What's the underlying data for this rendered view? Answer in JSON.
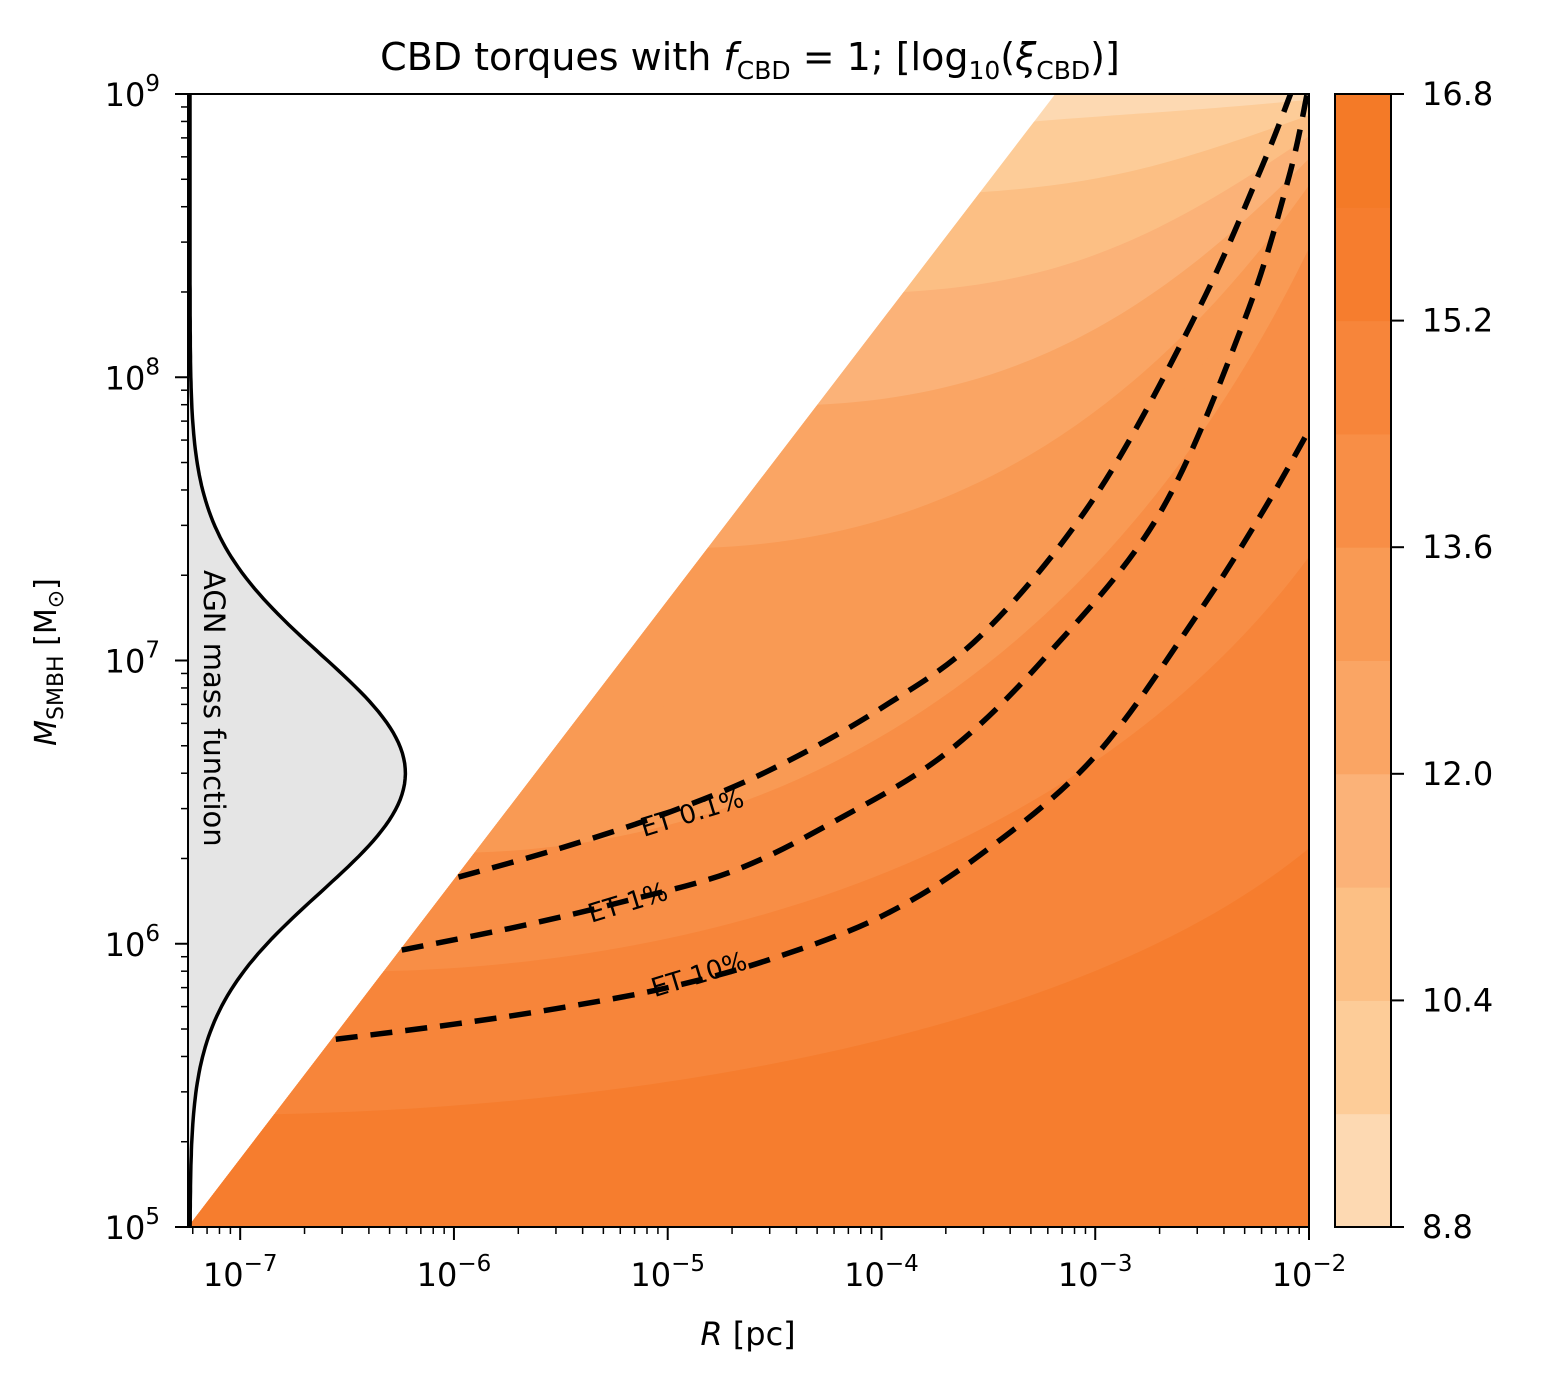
{
  "chart_data": {
    "type": "contourf",
    "title_parts": {
      "prefix": "CBD torques with ",
      "f": "f",
      "f_sub": "CBD",
      "eq": " = 1; [log",
      "log_sub": "10",
      "open": "(",
      "xi": "ξ",
      "xi_sub": "CBD",
      "close": ")]"
    },
    "xlabel": {
      "var": "R",
      "unit": " [pc]"
    },
    "ylabel": {
      "var": "M",
      "sub": "SMBH",
      "unit": " [M",
      "unit_sub": "⊙",
      "unit_close": "]"
    },
    "xscale": "log",
    "yscale": "log",
    "xlim": [
      5.7e-08,
      0.01
    ],
    "ylim": [
      100000,
      1000000000
    ],
    "x_ticks": [
      {
        "value": 1e-07,
        "base": "10",
        "exp": "−7"
      },
      {
        "value": 1e-06,
        "base": "10",
        "exp": "−6"
      },
      {
        "value": 1e-05,
        "base": "10",
        "exp": "−5"
      },
      {
        "value": 0.0001,
        "base": "10",
        "exp": "−4"
      },
      {
        "value": 0.001,
        "base": "10",
        "exp": "−3"
      },
      {
        "value": 0.01,
        "base": "10",
        "exp": "−2"
      }
    ],
    "y_ticks": [
      {
        "value": 100000,
        "base": "10",
        "exp": "5"
      },
      {
        "value": 1000000,
        "base": "10",
        "exp": "6"
      },
      {
        "value": 10000000,
        "base": "10",
        "exp": "7"
      },
      {
        "value": 100000000,
        "base": "10",
        "exp": "8"
      },
      {
        "value": 1000000000,
        "base": "10",
        "exp": "9"
      }
    ],
    "colorbar": {
      "range": [
        8.8,
        16.8
      ],
      "ticks": [
        "8.8",
        "10.4",
        "12.0",
        "13.6",
        "15.2",
        "16.8"
      ],
      "levels": 10,
      "colors": [
        "#fdd9b2",
        "#fdcc98",
        "#fcbf84",
        "#fbb278",
        "#faa564",
        "#f99a54",
        "#f88e46",
        "#f7853a",
        "#f67d2e",
        "#f47a27"
      ]
    },
    "contour_region": {
      "boundary": "power-law edge from (R=5.7e-8 pc, M=1e5) to (R=6.5e-4 pc, M=1e9)",
      "bands": [
        {
          "level": 16.0,
          "corner_M_at_edge": 250000,
          "M_at_R_max": 3500000
        },
        {
          "level": 15.2,
          "corner_M_at_edge": 800000,
          "M_at_R_max": 50000000
        },
        {
          "level": 14.4,
          "corner_M_at_edge": 2100000,
          "M_at_R_max": 900000000
        },
        {
          "level": 13.6,
          "corner_M_at_edge": 6500000,
          "M_at_R_max": 1200000000
        },
        {
          "level": 12.8,
          "corner_M_at_edge": 25000000,
          "M_at_R_max": 1000000000
        },
        {
          "level": 12.0,
          "corner_M_at_edge": 80000000,
          "M_at_R_max": 1000000000
        },
        {
          "level": 11.2,
          "corner_M_at_edge": 200000000,
          "M_at_R_max": 1000000000
        },
        {
          "level": 10.4,
          "corner_M_at_edge": 450000000,
          "M_at_R_max": 1000000000
        },
        {
          "level": 9.6,
          "corner_M_at_edge": 800000000,
          "M_at_R_max": 1000000000
        }
      ]
    },
    "series": [
      {
        "name": "ET 0.1%",
        "style": "dashed",
        "label": "ET 0.1%",
        "label_at": {
          "R": 1.3e-05,
          "M": 2900000
        },
        "points": [
          {
            "R": 1.05e-06,
            "M": 1720000
          },
          {
            "R": 3e-06,
            "M": 2150000
          },
          {
            "R": 1e-05,
            "M": 2900000
          },
          {
            "R": 3e-05,
            "M": 4100000
          },
          {
            "R": 0.0001,
            "M": 6800000
          },
          {
            "R": 0.0003,
            "M": 12500000
          },
          {
            "R": 0.001,
            "M": 38000000
          },
          {
            "R": 0.003,
            "M": 170000000
          },
          {
            "R": 0.006,
            "M": 550000000
          },
          {
            "R": 0.0082,
            "M": 1000000000
          }
        ]
      },
      {
        "name": "ET 1%",
        "style": "dashed",
        "label": "ET 1%",
        "label_at": {
          "R": 6.5e-06,
          "M": 1400000
        },
        "points": [
          {
            "R": 5.7e-07,
            "M": 950000
          },
          {
            "R": 2e-06,
            "M": 1150000
          },
          {
            "R": 6e-06,
            "M": 1400000
          },
          {
            "R": 2e-05,
            "M": 1800000
          },
          {
            "R": 6e-05,
            "M": 2700000
          },
          {
            "R": 0.0002,
            "M": 4700000
          },
          {
            "R": 0.0006,
            "M": 10500000
          },
          {
            "R": 0.002,
            "M": 33000000
          },
          {
            "R": 0.005,
            "M": 160000000
          },
          {
            "R": 0.008,
            "M": 500000000
          },
          {
            "R": 0.0098,
            "M": 1000000000
          }
        ]
      },
      {
        "name": "ET 10%",
        "style": "dashed",
        "label": "ET 10%",
        "label_at": {
          "R": 1.4e-05,
          "M": 780000
        },
        "points": [
          {
            "R": 2.8e-07,
            "M": 460000
          },
          {
            "R": 1e-06,
            "M": 520000
          },
          {
            "R": 3e-06,
            "M": 590000
          },
          {
            "R": 1e-05,
            "M": 700000
          },
          {
            "R": 3e-05,
            "M": 880000
          },
          {
            "R": 0.0001,
            "M": 1250000
          },
          {
            "R": 0.0003,
            "M": 2100000
          },
          {
            "R": 0.001,
            "M": 4600000
          },
          {
            "R": 0.003,
            "M": 14500000
          },
          {
            "R": 0.006,
            "M": 33000000
          },
          {
            "R": 0.01,
            "M": 65000000
          }
        ]
      }
    ],
    "mass_function": {
      "label": "AGN mass function",
      "peak_M": 4000000,
      "sigma_dex": 0.42,
      "peak_R": 5.8e-07,
      "baseline_R": 5.7e-08,
      "fill": "#e5e5e5"
    }
  }
}
